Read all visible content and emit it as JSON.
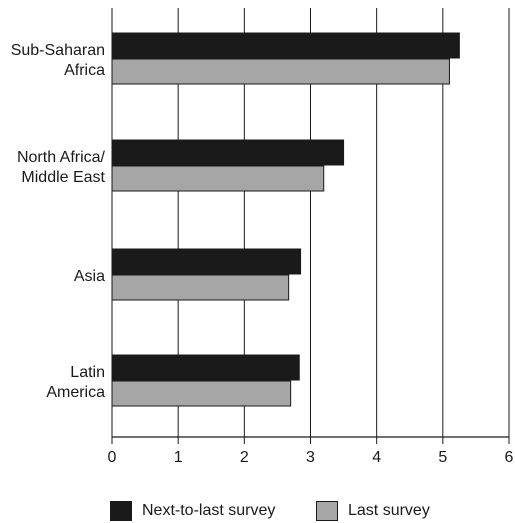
{
  "chart_data": {
    "type": "bar",
    "orientation": "horizontal",
    "categories": [
      [
        "Sub-Saharan",
        "Africa"
      ],
      [
        "North Africa/",
        "Middle East"
      ],
      [
        "Asia"
      ],
      [
        "Latin",
        "America"
      ]
    ],
    "series": [
      {
        "name": "Next-to-last survey",
        "color": "#1a1a1a",
        "values": [
          5.25,
          3.5,
          2.85,
          2.83
        ]
      },
      {
        "name": "Last survey",
        "color": "#a6a6a6",
        "values": [
          5.1,
          3.2,
          2.67,
          2.7
        ]
      }
    ],
    "xlim": [
      0,
      6
    ],
    "xticks": [
      "0",
      "1",
      "2",
      "3",
      "4",
      "5",
      "6"
    ],
    "grid": true,
    "legend_position": "bottom"
  }
}
